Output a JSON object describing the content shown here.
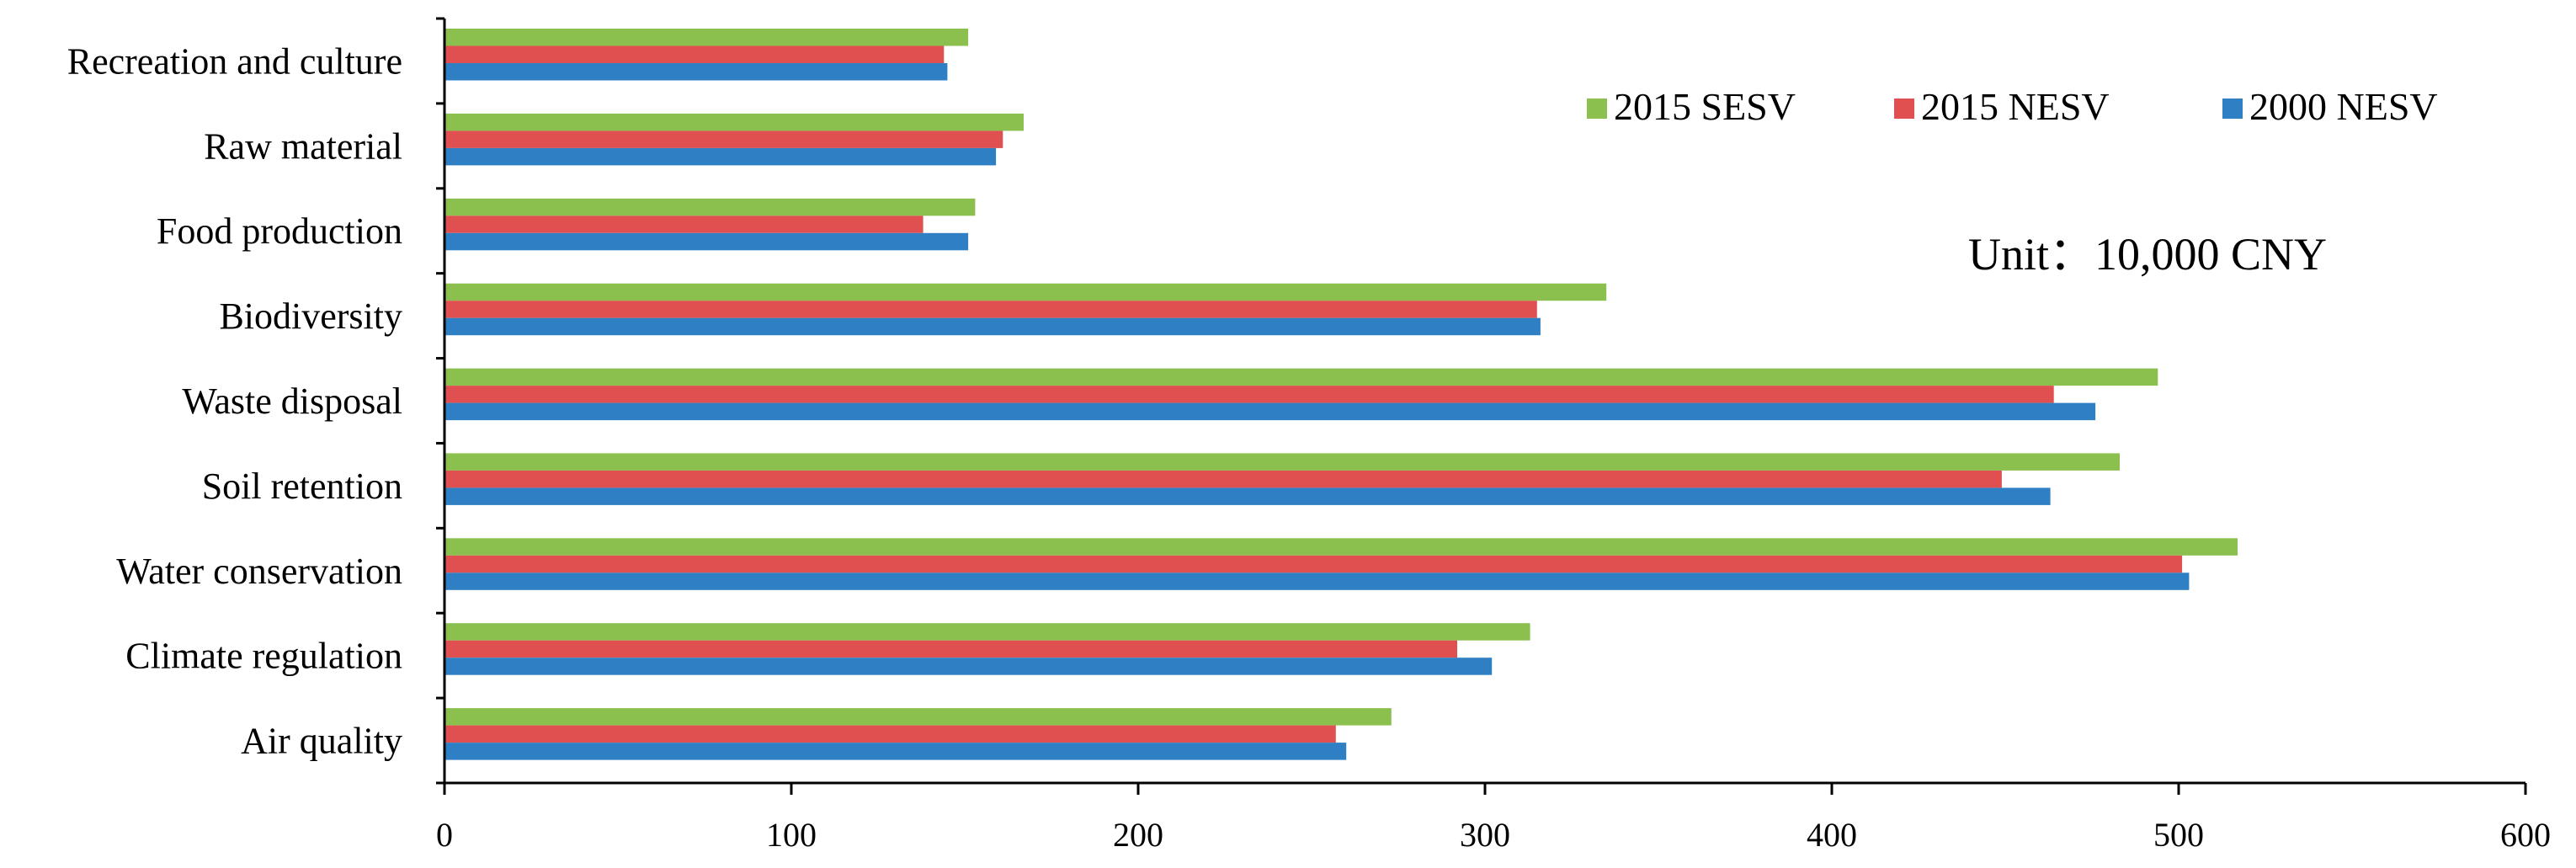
{
  "chart_data": {
    "type": "bar",
    "orientation": "horizontal",
    "categories": [
      "Air quality",
      "Climate regulation",
      "Water conservation",
      "Soil retention",
      "Waste disposal",
      "Biodiversity",
      "Food production",
      "Raw material",
      "Recreation and culture"
    ],
    "series": [
      {
        "name": "2000 NESV",
        "color": "#2e7fc4",
        "values": [
          260,
          302,
          503,
          463,
          476,
          316,
          151,
          159,
          145
        ]
      },
      {
        "name": "2015 NESV",
        "color": "#e05050",
        "values": [
          257,
          292,
          501,
          449,
          464,
          315,
          138,
          161,
          144
        ]
      },
      {
        "name": "2015 SESV",
        "color": "#8bc04f",
        "values": [
          273,
          313,
          517,
          483,
          494,
          335,
          153,
          167,
          151
        ]
      }
    ],
    "legend_order": [
      "2015 SESV",
      "2015 NESV",
      "2000 NESV"
    ],
    "legend_position": "top-right",
    "unit_note": "Unit：10,000 CNY",
    "title": "",
    "xlabel": "",
    "ylabel": "",
    "xlim": [
      0,
      600
    ],
    "xticks": [
      0,
      100,
      200,
      300,
      400,
      500,
      600
    ],
    "grid": false
  }
}
